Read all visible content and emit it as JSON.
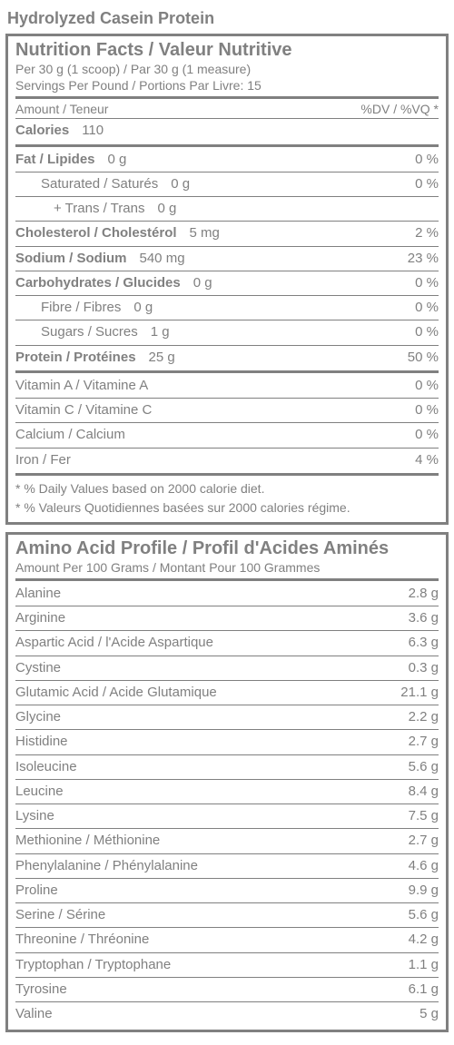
{
  "product_title": "Hydrolyzed Casein Protein",
  "nutrition": {
    "heading": "Nutrition Facts / Valeur Nutritive",
    "serving1": "Per 30 g (1 scoop) /  Par 30 g (1 measure)",
    "serving2": "Servings Per Pound / Portions Par Livre: 15",
    "amount_hdr": "Amount / Teneur",
    "dv_hdr": "%DV / %VQ *",
    "calories_label": "Calories",
    "calories_value": "110",
    "rows": [
      {
        "label": "Fat / Lipides",
        "amount": "0 g",
        "dv": "0 %",
        "bold": true,
        "indent": 0
      },
      {
        "label": "Saturated / Saturés",
        "amount": "0 g",
        "dv": "0 %",
        "bold": false,
        "indent": 1
      },
      {
        "label": "+ Trans / Trans",
        "amount": "0 g",
        "dv": "",
        "bold": false,
        "indent": 2
      },
      {
        "label": "Cholesterol / Cholestérol",
        "amount": "5 mg",
        "dv": "2 %",
        "bold": true,
        "indent": 0
      },
      {
        "label": "Sodium / Sodium",
        "amount": "540 mg",
        "dv": "23 %",
        "bold": true,
        "indent": 0
      },
      {
        "label": "Carbohydrates / Glucides",
        "amount": "0 g",
        "dv": "0 %",
        "bold": true,
        "indent": 0
      },
      {
        "label": "Fibre / Fibres",
        "amount": "0 g",
        "dv": "0 %",
        "bold": false,
        "indent": 1
      },
      {
        "label": "Sugars / Sucres",
        "amount": "1 g",
        "dv": "0 %",
        "bold": false,
        "indent": 1
      },
      {
        "label": "Protein / Protéines",
        "amount": "25 g",
        "dv": "50 %",
        "bold": true,
        "indent": 0
      }
    ],
    "vitamins": [
      {
        "label": "Vitamin A / Vitamine A",
        "dv": "0 %"
      },
      {
        "label": "Vitamin C / Vitamine C",
        "dv": "0 %"
      },
      {
        "label": "Calcium / Calcium",
        "dv": "0 %"
      },
      {
        "label": "Iron / Fer",
        "dv": "4 %"
      }
    ],
    "footnote1": "* % Daily Values based on 2000 calorie diet.",
    "footnote2": "* % Valeurs Quotidiennes basées sur 2000 calories régime."
  },
  "amino": {
    "heading": "Amino Acid Profile / Profil d'Acides Aminés",
    "sub": "Amount Per 100 Grams / Montant Pour 100 Grammes",
    "rows": [
      {
        "label": "Alanine",
        "amount": "2.8 g"
      },
      {
        "label": "Arginine",
        "amount": "3.6 g"
      },
      {
        "label": "Aspartic Acid / l'Acide Aspartique",
        "amount": "6.3 g"
      },
      {
        "label": "Cystine",
        "amount": "0.3 g"
      },
      {
        "label": "Glutamic Acid / Acide Glutamique",
        "amount": "21.1 g"
      },
      {
        "label": "Glycine",
        "amount": "2.2 g"
      },
      {
        "label": "Histidine",
        "amount": "2.7 g"
      },
      {
        "label": "Isoleucine",
        "amount": "5.6 g"
      },
      {
        "label": "Leucine",
        "amount": "8.4 g"
      },
      {
        "label": "Lysine",
        "amount": "7.5 g"
      },
      {
        "label": "Methionine / Méthionine",
        "amount": "2.7 g"
      },
      {
        "label": "Phenylalanine / Phénylalanine",
        "amount": "4.6 g"
      },
      {
        "label": "Proline",
        "amount": "9.9 g"
      },
      {
        "label": "Serine / Sérine",
        "amount": "5.6 g"
      },
      {
        "label": "Threonine / Thréonine",
        "amount": "4.2 g"
      },
      {
        "label": "Tryptophan / Tryptophane",
        "amount": "1.1 g"
      },
      {
        "label": "Tyrosine",
        "amount": "6.1 g"
      },
      {
        "label": "Valine",
        "amount": "5 g"
      }
    ]
  }
}
